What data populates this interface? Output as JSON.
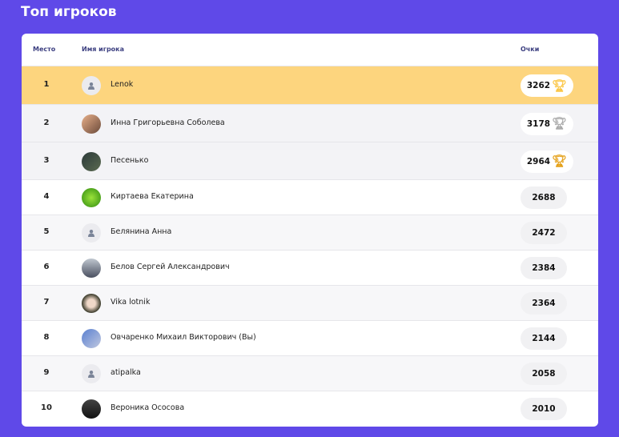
{
  "title": "Топ игроков",
  "columns": {
    "rank": "Место",
    "name": "Имя игрока",
    "score": "Очки"
  },
  "colors": {
    "background": "#5f49e8",
    "first_row": "#fdd57e",
    "top_row": "#f3f3f6",
    "gold": "#fbc645",
    "silver": "#aaaaaa",
    "bronze": "#e5a11a"
  },
  "rows": [
    {
      "rank": "1",
      "name": "Lenok",
      "score": "3262",
      "avatar": "default",
      "trophy": "gold"
    },
    {
      "rank": "2",
      "name": "Инна Григорьевна Соболева",
      "score": "3178",
      "avatar": "photo",
      "trophy": "silver"
    },
    {
      "rank": "3",
      "name": "Песенько",
      "score": "2964",
      "avatar": "photo",
      "trophy": "bronze"
    },
    {
      "rank": "4",
      "name": "Киртаева Екатерина",
      "score": "2688",
      "avatar": "photo"
    },
    {
      "rank": "5",
      "name": "Белянина Анна",
      "score": "2472",
      "avatar": "default"
    },
    {
      "rank": "6",
      "name": "Белов Сергей Александрович",
      "score": "2384",
      "avatar": "photo"
    },
    {
      "rank": "7",
      "name": "Vika lotnik",
      "score": "2364",
      "avatar": "photo"
    },
    {
      "rank": "8",
      "name": "Овчаренко Михаил Викторович (Вы)",
      "score": "2144",
      "avatar": "photo"
    },
    {
      "rank": "9",
      "name": "atipalka",
      "score": "2058",
      "avatar": "default"
    },
    {
      "rank": "10",
      "name": "Вероника Ососова",
      "score": "2010",
      "avatar": "photo"
    }
  ]
}
